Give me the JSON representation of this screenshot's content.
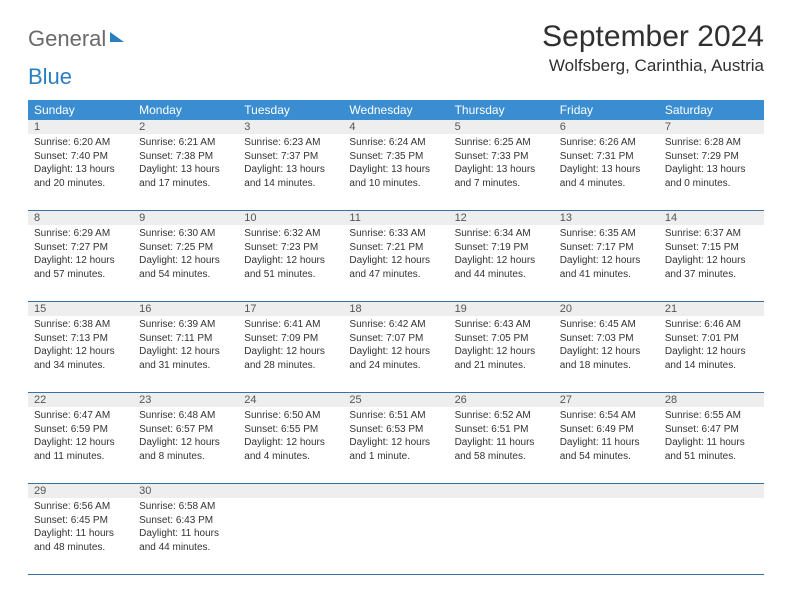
{
  "logo": {
    "part1": "General",
    "part2": "Blue"
  },
  "title": "September 2024",
  "location": "Wolfsberg, Carinthia, Austria",
  "header_bg": "#3a8dd0",
  "days_of_week": [
    "Sunday",
    "Monday",
    "Tuesday",
    "Wednesday",
    "Thursday",
    "Friday",
    "Saturday"
  ],
  "weeks": [
    [
      {
        "n": "1",
        "sr": "Sunrise: 6:20 AM",
        "ss": "Sunset: 7:40 PM",
        "d1": "Daylight: 13 hours",
        "d2": "and 20 minutes."
      },
      {
        "n": "2",
        "sr": "Sunrise: 6:21 AM",
        "ss": "Sunset: 7:38 PM",
        "d1": "Daylight: 13 hours",
        "d2": "and 17 minutes."
      },
      {
        "n": "3",
        "sr": "Sunrise: 6:23 AM",
        "ss": "Sunset: 7:37 PM",
        "d1": "Daylight: 13 hours",
        "d2": "and 14 minutes."
      },
      {
        "n": "4",
        "sr": "Sunrise: 6:24 AM",
        "ss": "Sunset: 7:35 PM",
        "d1": "Daylight: 13 hours",
        "d2": "and 10 minutes."
      },
      {
        "n": "5",
        "sr": "Sunrise: 6:25 AM",
        "ss": "Sunset: 7:33 PM",
        "d1": "Daylight: 13 hours",
        "d2": "and 7 minutes."
      },
      {
        "n": "6",
        "sr": "Sunrise: 6:26 AM",
        "ss": "Sunset: 7:31 PM",
        "d1": "Daylight: 13 hours",
        "d2": "and 4 minutes."
      },
      {
        "n": "7",
        "sr": "Sunrise: 6:28 AM",
        "ss": "Sunset: 7:29 PM",
        "d1": "Daylight: 13 hours",
        "d2": "and 0 minutes."
      }
    ],
    [
      {
        "n": "8",
        "sr": "Sunrise: 6:29 AM",
        "ss": "Sunset: 7:27 PM",
        "d1": "Daylight: 12 hours",
        "d2": "and 57 minutes."
      },
      {
        "n": "9",
        "sr": "Sunrise: 6:30 AM",
        "ss": "Sunset: 7:25 PM",
        "d1": "Daylight: 12 hours",
        "d2": "and 54 minutes."
      },
      {
        "n": "10",
        "sr": "Sunrise: 6:32 AM",
        "ss": "Sunset: 7:23 PM",
        "d1": "Daylight: 12 hours",
        "d2": "and 51 minutes."
      },
      {
        "n": "11",
        "sr": "Sunrise: 6:33 AM",
        "ss": "Sunset: 7:21 PM",
        "d1": "Daylight: 12 hours",
        "d2": "and 47 minutes."
      },
      {
        "n": "12",
        "sr": "Sunrise: 6:34 AM",
        "ss": "Sunset: 7:19 PM",
        "d1": "Daylight: 12 hours",
        "d2": "and 44 minutes."
      },
      {
        "n": "13",
        "sr": "Sunrise: 6:35 AM",
        "ss": "Sunset: 7:17 PM",
        "d1": "Daylight: 12 hours",
        "d2": "and 41 minutes."
      },
      {
        "n": "14",
        "sr": "Sunrise: 6:37 AM",
        "ss": "Sunset: 7:15 PM",
        "d1": "Daylight: 12 hours",
        "d2": "and 37 minutes."
      }
    ],
    [
      {
        "n": "15",
        "sr": "Sunrise: 6:38 AM",
        "ss": "Sunset: 7:13 PM",
        "d1": "Daylight: 12 hours",
        "d2": "and 34 minutes."
      },
      {
        "n": "16",
        "sr": "Sunrise: 6:39 AM",
        "ss": "Sunset: 7:11 PM",
        "d1": "Daylight: 12 hours",
        "d2": "and 31 minutes."
      },
      {
        "n": "17",
        "sr": "Sunrise: 6:41 AM",
        "ss": "Sunset: 7:09 PM",
        "d1": "Daylight: 12 hours",
        "d2": "and 28 minutes."
      },
      {
        "n": "18",
        "sr": "Sunrise: 6:42 AM",
        "ss": "Sunset: 7:07 PM",
        "d1": "Daylight: 12 hours",
        "d2": "and 24 minutes."
      },
      {
        "n": "19",
        "sr": "Sunrise: 6:43 AM",
        "ss": "Sunset: 7:05 PM",
        "d1": "Daylight: 12 hours",
        "d2": "and 21 minutes."
      },
      {
        "n": "20",
        "sr": "Sunrise: 6:45 AM",
        "ss": "Sunset: 7:03 PM",
        "d1": "Daylight: 12 hours",
        "d2": "and 18 minutes."
      },
      {
        "n": "21",
        "sr": "Sunrise: 6:46 AM",
        "ss": "Sunset: 7:01 PM",
        "d1": "Daylight: 12 hours",
        "d2": "and 14 minutes."
      }
    ],
    [
      {
        "n": "22",
        "sr": "Sunrise: 6:47 AM",
        "ss": "Sunset: 6:59 PM",
        "d1": "Daylight: 12 hours",
        "d2": "and 11 minutes."
      },
      {
        "n": "23",
        "sr": "Sunrise: 6:48 AM",
        "ss": "Sunset: 6:57 PM",
        "d1": "Daylight: 12 hours",
        "d2": "and 8 minutes."
      },
      {
        "n": "24",
        "sr": "Sunrise: 6:50 AM",
        "ss": "Sunset: 6:55 PM",
        "d1": "Daylight: 12 hours",
        "d2": "and 4 minutes."
      },
      {
        "n": "25",
        "sr": "Sunrise: 6:51 AM",
        "ss": "Sunset: 6:53 PM",
        "d1": "Daylight: 12 hours",
        "d2": "and 1 minute."
      },
      {
        "n": "26",
        "sr": "Sunrise: 6:52 AM",
        "ss": "Sunset: 6:51 PM",
        "d1": "Daylight: 11 hours",
        "d2": "and 58 minutes."
      },
      {
        "n": "27",
        "sr": "Sunrise: 6:54 AM",
        "ss": "Sunset: 6:49 PM",
        "d1": "Daylight: 11 hours",
        "d2": "and 54 minutes."
      },
      {
        "n": "28",
        "sr": "Sunrise: 6:55 AM",
        "ss": "Sunset: 6:47 PM",
        "d1": "Daylight: 11 hours",
        "d2": "and 51 minutes."
      }
    ],
    [
      {
        "n": "29",
        "sr": "Sunrise: 6:56 AM",
        "ss": "Sunset: 6:45 PM",
        "d1": "Daylight: 11 hours",
        "d2": "and 48 minutes."
      },
      {
        "n": "30",
        "sr": "Sunrise: 6:58 AM",
        "ss": "Sunset: 6:43 PM",
        "d1": "Daylight: 11 hours",
        "d2": "and 44 minutes."
      },
      {
        "n": "",
        "sr": "",
        "ss": "",
        "d1": "",
        "d2": ""
      },
      {
        "n": "",
        "sr": "",
        "ss": "",
        "d1": "",
        "d2": ""
      },
      {
        "n": "",
        "sr": "",
        "ss": "",
        "d1": "",
        "d2": ""
      },
      {
        "n": "",
        "sr": "",
        "ss": "",
        "d1": "",
        "d2": ""
      },
      {
        "n": "",
        "sr": "",
        "ss": "",
        "d1": "",
        "d2": ""
      }
    ]
  ]
}
